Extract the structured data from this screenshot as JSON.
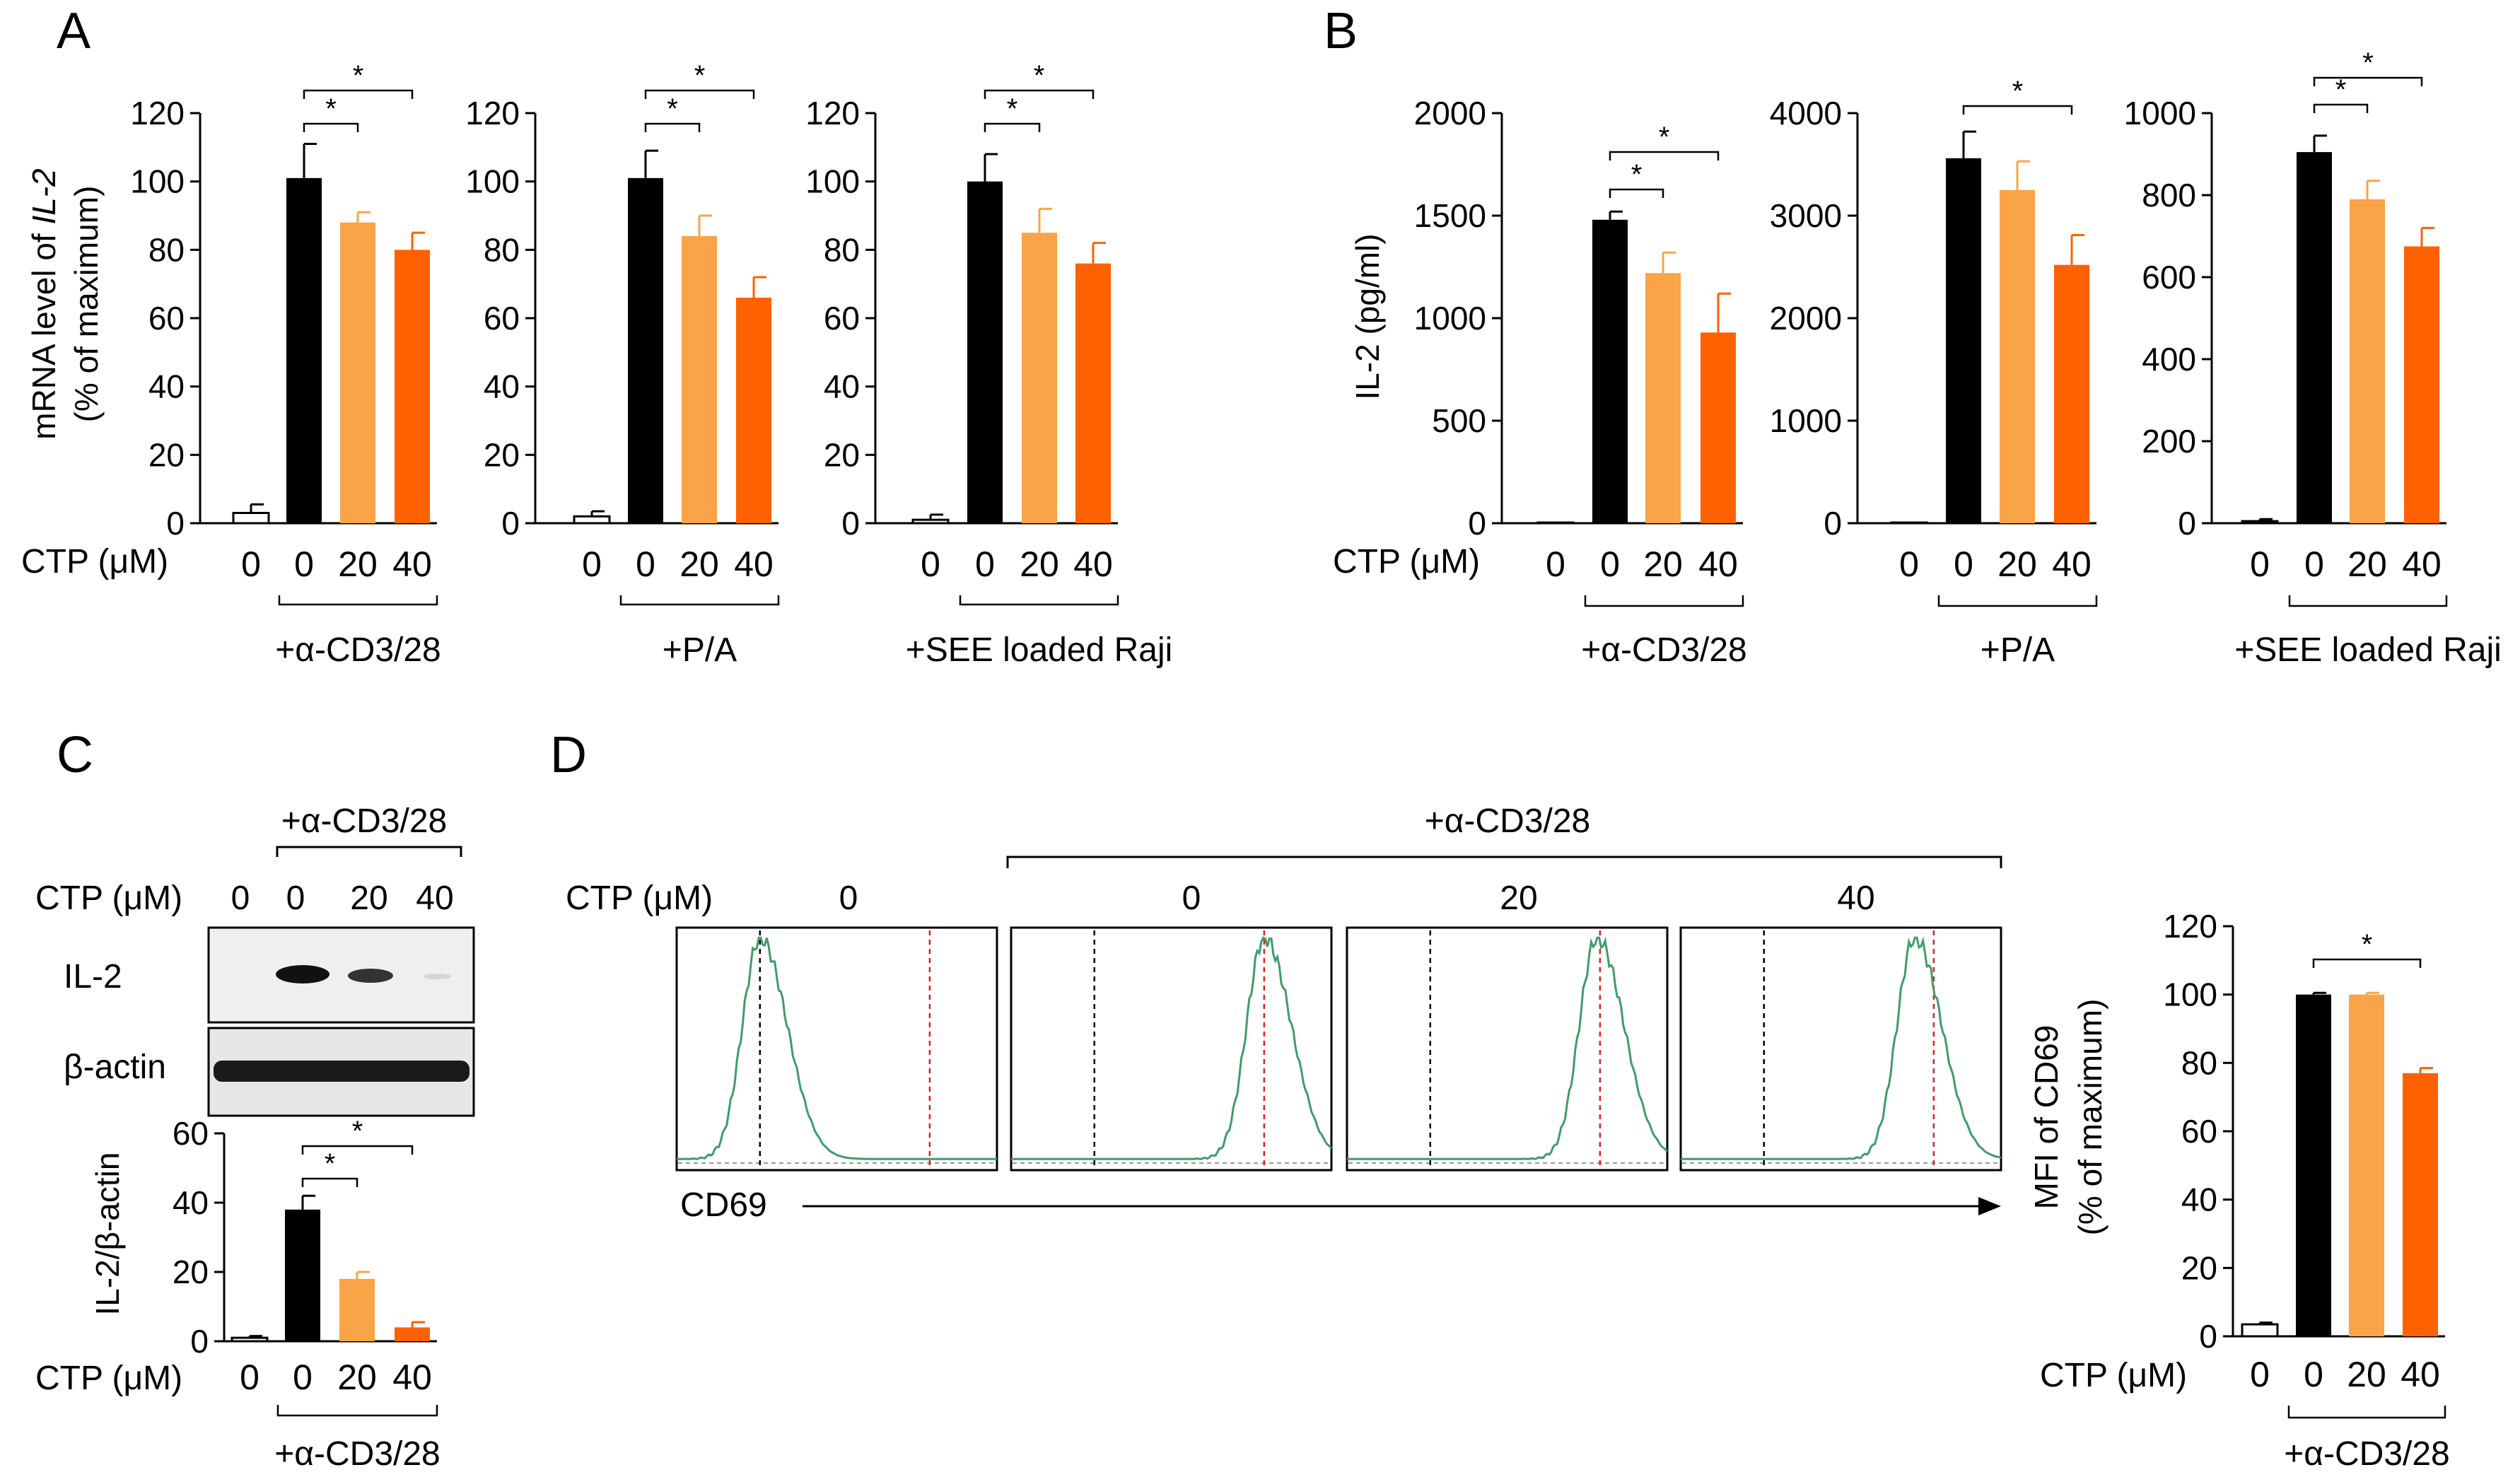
{
  "colors": {
    "black": "#000000",
    "ctl": "#ffffff",
    "light_orange": "#f9a446",
    "dark_orange": "#fe6100",
    "histogram": "#3f9c68",
    "baseline": "#999999",
    "ref_black": "#000000",
    "ref_red": "#e21f1f"
  },
  "common": {
    "ctp_label": "CTP (μM)",
    "star": "*"
  },
  "panels": {
    "A": {
      "letter": "A",
      "ylabel_line1_a": "mRNA level of ",
      "ylabel_line1_b": "IL-2",
      "ylabel_line2": "(% of maximum)"
    },
    "B": {
      "letter": "B",
      "ylabel": "IL-2 (pg/ml)"
    },
    "C": {
      "letter": "C",
      "treatment": "+α-CD3/28",
      "blot_header": [
        "0",
        "0",
        "20",
        "40"
      ],
      "blot_rows": [
        "IL-2",
        "β-actin"
      ],
      "ylabel": "IL-2/β-actin"
    },
    "D": {
      "letter": "D",
      "treatment": "+α-CD3/28",
      "columns": [
        "0",
        "0",
        "20",
        "40"
      ],
      "axis_label": "CD69",
      "ylabel_line1": "MFI of CD69",
      "ylabel_line2": "(% of maximum)"
    }
  },
  "chart_data": [
    {
      "id": "A1",
      "type": "bar",
      "panel": "A",
      "categories": [
        "0",
        "0",
        "20",
        "40"
      ],
      "values": [
        3,
        101,
        88,
        80
      ],
      "errors": [
        2.5,
        10,
        3,
        5
      ],
      "ylim": [
        0,
        120
      ],
      "yticks": [
        0,
        20,
        40,
        60,
        80,
        100,
        120
      ],
      "group_label": "+α-CD3/28",
      "significance": [
        {
          "from": 1,
          "to": 2,
          "label": "*"
        },
        {
          "from": 1,
          "to": 3,
          "label": "*"
        }
      ]
    },
    {
      "id": "A2",
      "type": "bar",
      "panel": "A",
      "categories": [
        "0",
        "0",
        "20",
        "40"
      ],
      "values": [
        2,
        101,
        84,
        66
      ],
      "errors": [
        1.5,
        8,
        6,
        6
      ],
      "ylim": [
        0,
        120
      ],
      "yticks": [
        0,
        20,
        40,
        60,
        80,
        100,
        120
      ],
      "group_label": "+P/A",
      "significance": [
        {
          "from": 1,
          "to": 2,
          "label": "*"
        },
        {
          "from": 1,
          "to": 3,
          "label": "*"
        }
      ]
    },
    {
      "id": "A3",
      "type": "bar",
      "panel": "A",
      "categories": [
        "0",
        "0",
        "20",
        "40"
      ],
      "values": [
        1,
        100,
        85,
        76
      ],
      "errors": [
        1.5,
        8,
        7,
        6
      ],
      "ylim": [
        0,
        120
      ],
      "yticks": [
        0,
        20,
        40,
        60,
        80,
        100,
        120
      ],
      "group_label": "+SEE loaded Raji",
      "significance": [
        {
          "from": 1,
          "to": 2,
          "label": "*"
        },
        {
          "from": 1,
          "to": 3,
          "label": "*"
        }
      ]
    },
    {
      "id": "B1",
      "type": "bar",
      "panel": "B",
      "categories": [
        "0",
        "0",
        "20",
        "40"
      ],
      "values": [
        0,
        1480,
        1220,
        930
      ],
      "errors": [
        0,
        40,
        100,
        190
      ],
      "ylim": [
        0,
        2000
      ],
      "yticks": [
        0,
        500,
        1000,
        1500,
        2000
      ],
      "group_label": "+α-CD3/28",
      "significance": [
        {
          "from": 1,
          "to": 2,
          "label": "*"
        },
        {
          "from": 1,
          "to": 3,
          "label": "*"
        }
      ]
    },
    {
      "id": "B2",
      "type": "bar",
      "panel": "B",
      "categories": [
        "0",
        "0",
        "20",
        "40"
      ],
      "values": [
        0,
        3560,
        3250,
        2520
      ],
      "errors": [
        0,
        260,
        280,
        290
      ],
      "ylim": [
        0,
        4000
      ],
      "yticks": [
        0,
        1000,
        2000,
        3000,
        4000
      ],
      "group_label": "+P/A",
      "significance": [
        {
          "from": 1,
          "to": 3,
          "label": "*"
        }
      ]
    },
    {
      "id": "B3",
      "type": "bar",
      "panel": "B",
      "categories": [
        "0",
        "0",
        "20",
        "40"
      ],
      "values": [
        5,
        905,
        790,
        675
      ],
      "errors": [
        5,
        40,
        45,
        45
      ],
      "ylim": [
        0,
        1000
      ],
      "yticks": [
        0,
        200,
        400,
        600,
        800,
        1000
      ],
      "group_label": "+SEE loaded Raji",
      "significance": [
        {
          "from": 1,
          "to": 2,
          "label": "*"
        },
        {
          "from": 1,
          "to": 3,
          "label": "*"
        }
      ]
    },
    {
      "id": "C1",
      "type": "bar",
      "panel": "C",
      "categories": [
        "0",
        "0",
        "20",
        "40"
      ],
      "values": [
        1,
        38,
        18,
        4
      ],
      "errors": [
        0.5,
        4,
        2,
        1.5
      ],
      "ylim": [
        0,
        60
      ],
      "yticks": [
        0,
        20,
        40,
        60
      ],
      "group_label": "+α-CD3/28",
      "significance": [
        {
          "from": 1,
          "to": 2,
          "label": "*"
        },
        {
          "from": 1,
          "to": 3,
          "label": "*"
        }
      ]
    },
    {
      "id": "D1",
      "type": "bar",
      "panel": "D",
      "categories": [
        "0",
        "0",
        "20",
        "40"
      ],
      "values": [
        3.5,
        100,
        100,
        77
      ],
      "errors": [
        0.5,
        0.5,
        0.5,
        1.5
      ],
      "ylim": [
        0,
        120
      ],
      "yticks": [
        0,
        20,
        40,
        60,
        80,
        100,
        120
      ],
      "group_label": "+α-CD3/28",
      "significance": [
        {
          "from": 1,
          "to": 3,
          "label": "*"
        }
      ]
    }
  ]
}
